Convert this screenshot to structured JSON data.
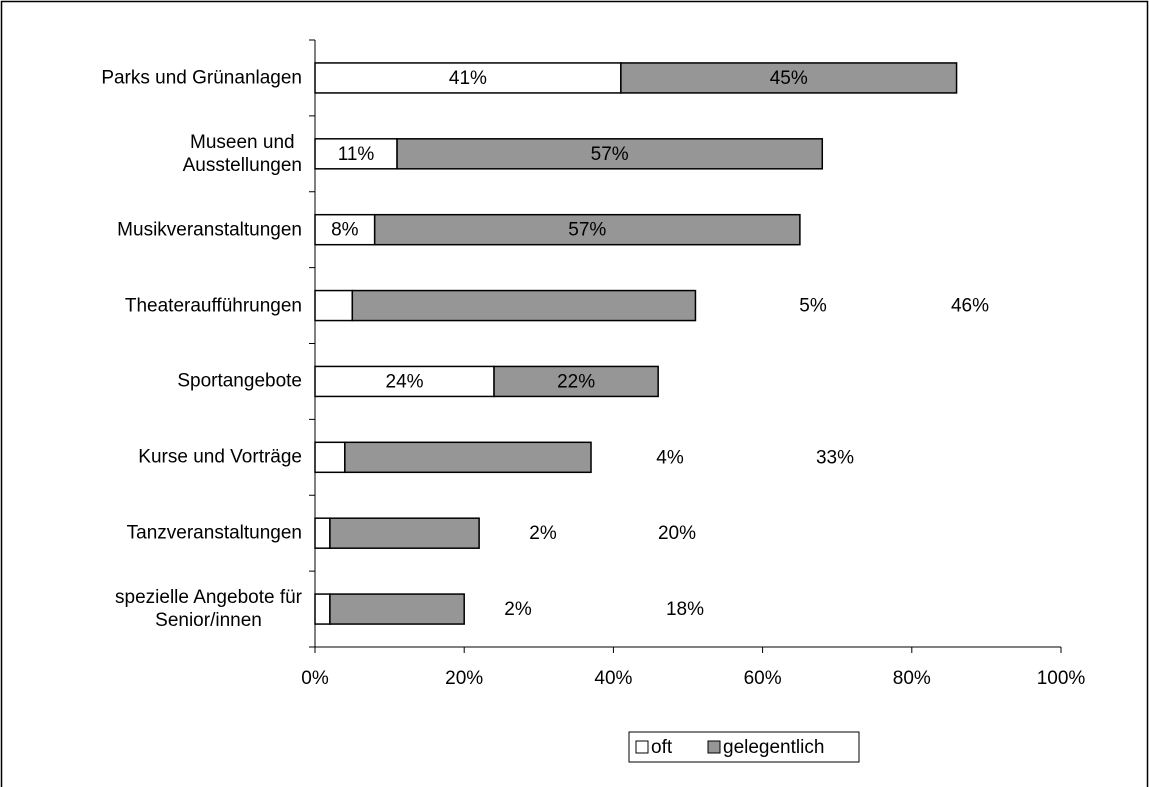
{
  "chart_data": {
    "type": "bar",
    "orientation": "horizontal",
    "stacked": true,
    "categories": [
      "Parks und Grünanlagen",
      "Museen und\nAusstellungen",
      "Musikveranstaltungen",
      "Theateraufführungen",
      "Sportangebote",
      "Kurse und Vorträge",
      "Tanzveranstaltungen",
      "spezielle Angebote für\nSenior/innen"
    ],
    "series": [
      {
        "name": "oft",
        "color": "#ffffff",
        "values": [
          41,
          11,
          8,
          5,
          24,
          4,
          2,
          2
        ],
        "value_labels": [
          "41%",
          "11%",
          "8%",
          "5%",
          "24%",
          "4%",
          "2%",
          "2%"
        ]
      },
      {
        "name": "gelegentlich",
        "color": "#969696",
        "values": [
          45,
          57,
          57,
          46,
          22,
          33,
          20,
          18
        ],
        "value_labels": [
          "45%",
          "57%",
          "57%",
          "46%",
          "22%",
          "33%",
          "20%",
          "18%"
        ]
      }
    ],
    "xlim": [
      0,
      100
    ],
    "xticks": [
      {
        "value": 0,
        "label": "0%"
      },
      {
        "value": 20,
        "label": "20%"
      },
      {
        "value": 40,
        "label": "40%"
      },
      {
        "value": 60,
        "label": "60%"
      },
      {
        "value": 80,
        "label": "80%"
      },
      {
        "value": 100,
        "label": "100%"
      }
    ],
    "legend": "bottom"
  }
}
